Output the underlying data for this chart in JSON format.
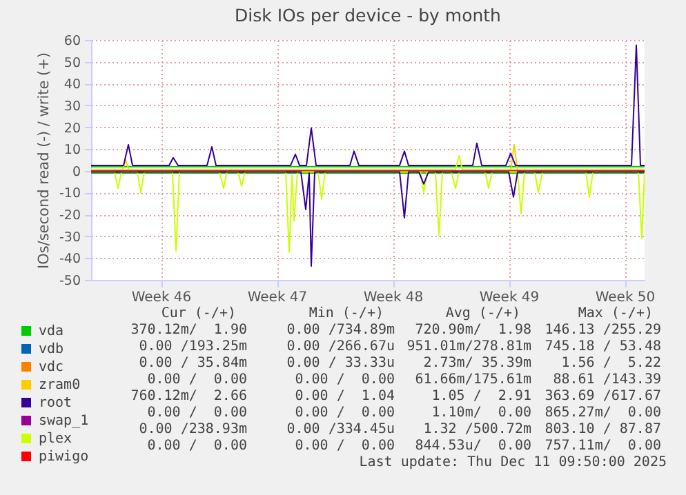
{
  "chart_data": {
    "type": "line",
    "title": "Disk IOs per device - by month",
    "ylabel": "IOs/second read (-) / write (+)",
    "xlim": [
      "2025-11-08T00:00",
      "2025-12-11T10:00"
    ],
    "xticks": [
      {
        "value": "2025-11-12T05:00",
        "label": "Week 46"
      },
      {
        "value": "2025-11-19T05:00",
        "label": "Week 47"
      },
      {
        "value": "2025-11-26T05:00",
        "label": "Week 48"
      },
      {
        "value": "2025-12-03T05:00",
        "label": "Week 49"
      },
      {
        "value": "2025-12-10T05:00",
        "label": "Week 50"
      }
    ],
    "ylim": [
      -50,
      60
    ],
    "yticks": [
      -50,
      -40,
      -30,
      -20,
      -10,
      0,
      10,
      20,
      30,
      40,
      50,
      60
    ],
    "grid": true,
    "legend": "bottom left",
    "series": [
      {
        "name": "vda",
        "color": "#00cc00",
        "x": [
          "2025-11-08T00:00",
          "2025-12-11T10:00"
        ],
        "values": [
          1.9,
          1.9
        ]
      },
      {
        "name": "vdb",
        "color": "#0066b3"
      },
      {
        "name": "vdc",
        "color": "#ff8000"
      },
      {
        "name": "zram0",
        "color": "#ffcc00",
        "x": [
          "2025-11-08T00:00",
          "2025-11-09T21:00",
          "2025-11-10T02:00",
          "2025-11-10T07:00",
          "2025-12-03T08:00",
          "2025-12-03T13:00",
          "2025-12-03T18:00",
          "2025-12-11T10:00"
        ],
        "values": [
          0,
          0,
          5,
          0,
          0,
          12,
          0,
          0
        ]
      },
      {
        "name": "root",
        "color": "#330099",
        "x": [
          "2025-11-08T00:00",
          "2025-11-09T23:00",
          "2025-11-10T06:00",
          "2025-11-10T12:00",
          "2025-11-12T17:00",
          "2025-11-12T23:00",
          "2025-11-13T06:00",
          "2025-11-15T00:00",
          "2025-11-15T07:00",
          "2025-11-15T13:00",
          "2025-11-20T01:00",
          "2025-11-20T08:00",
          "2025-11-20T14:00",
          "2025-11-21T00:00",
          "2025-11-21T07:00",
          "2025-11-21T14:00",
          "2025-11-23T15:00",
          "2025-11-23T21:00",
          "2025-11-24T04:00",
          "2025-11-26T15:00",
          "2025-11-26T22:00",
          "2025-11-27T04:00",
          "2025-12-01T01:00",
          "2025-12-01T07:00",
          "2025-12-01T14:00",
          "2025-12-03T01:00",
          "2025-12-03T08:00",
          "2025-12-03T15:00",
          "2025-12-10T15:00",
          "2025-12-10T22:00",
          "2025-12-11T04:00",
          "2025-12-11T10:00"
        ],
        "values": [
          2.5,
          2.5,
          12,
          2.5,
          2.5,
          6,
          2.5,
          2.5,
          11,
          2.5,
          2.5,
          7.6,
          2.5,
          2.5,
          19.6,
          2.5,
          2.5,
          9,
          2.5,
          2.5,
          9,
          2.5,
          2.5,
          12.7,
          2.5,
          2.5,
          8,
          2.5,
          2.5,
          57.6,
          2.5,
          2.5
        ]
      },
      {
        "name": "swap_1",
        "color": "#990099"
      },
      {
        "name": "plex",
        "color": "#ccff00",
        "x": [
          "2025-11-08T00:00",
          "2025-11-30T00:00",
          "2025-11-30T05:00",
          "2025-11-30T10:00",
          "2025-12-11T10:00"
        ],
        "values": [
          0.5,
          0.5,
          7,
          0.5,
          0.5
        ]
      },
      {
        "name": "piwigo",
        "color": "#ff0000",
        "x": [
          "2025-11-08T00:00",
          "2025-12-11T10:00"
        ],
        "values": [
          0,
          0
        ]
      },
      {
        "color": "#00cc00",
        "x": [
          "2025-11-08T00:00",
          "2025-12-11T10:00"
        ],
        "values": [
          -1,
          -1
        ]
      },
      {
        "color": "#ccff00",
        "x": [
          "2025-11-08T00:00",
          "2025-11-09T10:00",
          "2025-11-09T15:00",
          "2025-11-09T20:00",
          "2025-11-10T19:00",
          "2025-11-11T00:00",
          "2025-11-11T05:00",
          "2025-11-12T22:00",
          "2025-11-13T03:00",
          "2025-11-13T08:00",
          "2025-11-15T18:00",
          "2025-11-16T00:00",
          "2025-11-16T05:00",
          "2025-11-16T21:00",
          "2025-11-17T02:00",
          "2025-11-17T07:00",
          "2025-11-19T18:00",
          "2025-11-19T23:00",
          "2025-11-20T03:00",
          "2025-11-20T06:00",
          "2025-11-20T11:00",
          "2025-11-21T17:00",
          "2025-11-21T22:00",
          "2025-11-22T03:00",
          "2025-11-27T21:00",
          "2025-11-28T02:00",
          "2025-11-28T07:00",
          "2025-11-28T19:00",
          "2025-11-29T00:00",
          "2025-11-29T05:00",
          "2025-11-29T18:00",
          "2025-11-30T00:00",
          "2025-11-30T05:00",
          "2025-12-01T19:00",
          "2025-12-02T00:00",
          "2025-12-02T05:00",
          "2025-12-03T18:00",
          "2025-12-03T23:00",
          "2025-12-04T04:00",
          "2025-12-04T19:00",
          "2025-12-05T00:00",
          "2025-12-05T06:00",
          "2025-12-07T21:00",
          "2025-12-08T02:00",
          "2025-12-08T07:00",
          "2025-12-11T01:00",
          "2025-12-11T06:00",
          "2025-12-11T10:00"
        ],
        "values": [
          -0.5,
          -0.5,
          -8,
          -0.5,
          -0.5,
          -10,
          -0.5,
          -0.5,
          -36.7,
          -0.5,
          -0.5,
          -8,
          -0.5,
          -0.5,
          -7,
          -0.5,
          -0.5,
          -37.3,
          -2,
          -23,
          -0.5,
          -0.5,
          -13,
          -0.5,
          -0.5,
          -10,
          -0.5,
          -0.5,
          -29.7,
          -0.5,
          -0.5,
          -8,
          -0.5,
          -0.5,
          -8,
          -0.5,
          -0.5,
          -19.6,
          -0.5,
          -0.5,
          -10,
          -0.5,
          -0.5,
          -12,
          -0.5,
          -0.5,
          -31,
          -0.5
        ]
      },
      {
        "color": "#330099",
        "x": [
          "2025-11-08T00:00",
          "2025-11-20T16:00",
          "2025-11-20T23:00",
          "2025-11-21T04:00",
          "2025-11-21T07:00",
          "2025-11-21T12:00",
          "2025-11-26T15:00",
          "2025-11-26T22:00",
          "2025-11-27T04:00",
          "2025-11-27T19:00",
          "2025-11-28T02:00",
          "2025-11-28T09:00",
          "2025-12-03T05:00",
          "2025-12-03T12:00",
          "2025-12-03T18:00",
          "2025-12-11T10:00"
        ],
        "values": [
          -0.5,
          -0.5,
          -17.7,
          -1,
          -43.7,
          -0.5,
          -0.5,
          -21.5,
          -0.5,
          -0.5,
          -6,
          -0.5,
          -0.5,
          -12,
          -0.5,
          -0.5
        ]
      }
    ],
    "annotations": [
      "Cur (-/+)",
      "Min (-/+)",
      "Avg (-/+)",
      "Max (-/+)",
      "370.12m/  1.90",
      "  0.00 /734.89m",
      "720.90m/  1.98",
      "146.13 /255.29",
      "  0.00 /193.25m",
      "  0.00 /266.67u",
      "951.01m/278.81m",
      "745.18 / 53.48",
      "  0.00 / 35.84m",
      "  0.00 / 33.33u",
      "  2.73m/ 35.39m",
      "  1.56 /  5.22",
      "  0.00 /  0.00",
      "  0.00 /  0.00",
      " 61.66m/175.61m",
      " 88.61 /143.39",
      "760.12m/  2.66",
      "  0.00 /  1.04",
      "  1.05 /  2.91",
      "363.69 /617.67",
      "  0.00 /  0.00",
      "  0.00 /  0.00",
      "  1.10m/  0.00",
      "865.27m/  0.00",
      "  0.00 /238.93m",
      "  0.00 /334.45u",
      "  1.32 /500.72m",
      "803.10 / 87.87",
      "  0.00 /  0.00",
      "  0.00 /  0.00",
      "844.53u/  0.00",
      "757.11m/  0.00",
      "Last update: Thu Dec 11 09:50:00 2025"
    ]
  }
}
